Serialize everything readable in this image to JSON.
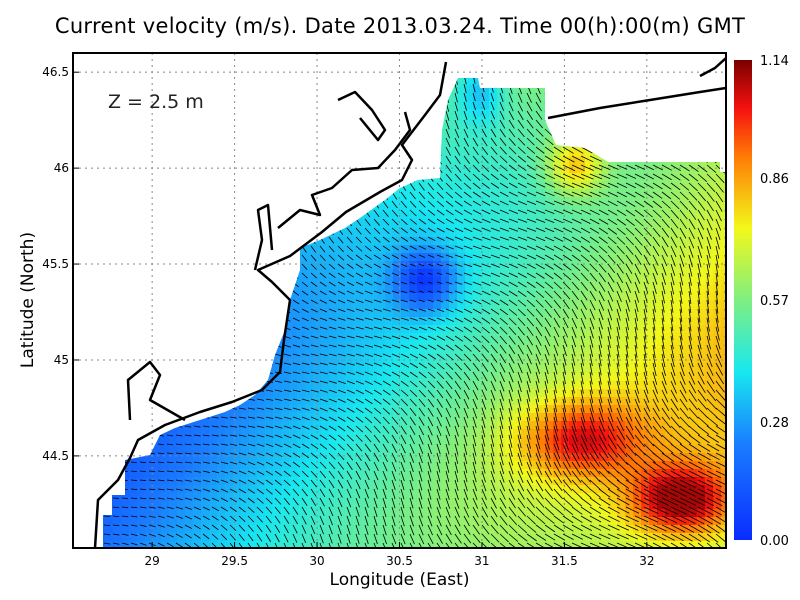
{
  "title": "Current velocity (m/s). Date 2013.03.24. Time 00(h):00(m) GMT",
  "depth_label": "Z = 2.5 m",
  "chart_data": {
    "type": "heatmap",
    "xlabel": "Longitude (East)",
    "ylabel": "Latitude (North)",
    "xlim": [
      28.52,
      32.48
    ],
    "ylim": [
      44.02,
      46.6
    ],
    "xticks": [
      "29",
      "29.5",
      "30",
      "30.5",
      "31",
      "31.5",
      "32"
    ],
    "yticks": [
      "44.5",
      "45",
      "45.5",
      "46",
      "46.5"
    ],
    "grid": true,
    "colorbar": {
      "min": 0.0,
      "max": 1.14,
      "ticks": [
        "0.00",
        "0.28",
        "0.57",
        "0.86",
        "1.14"
      ],
      "colormap": "jet",
      "placement": "right"
    },
    "overlay": "velocity vectors"
  }
}
